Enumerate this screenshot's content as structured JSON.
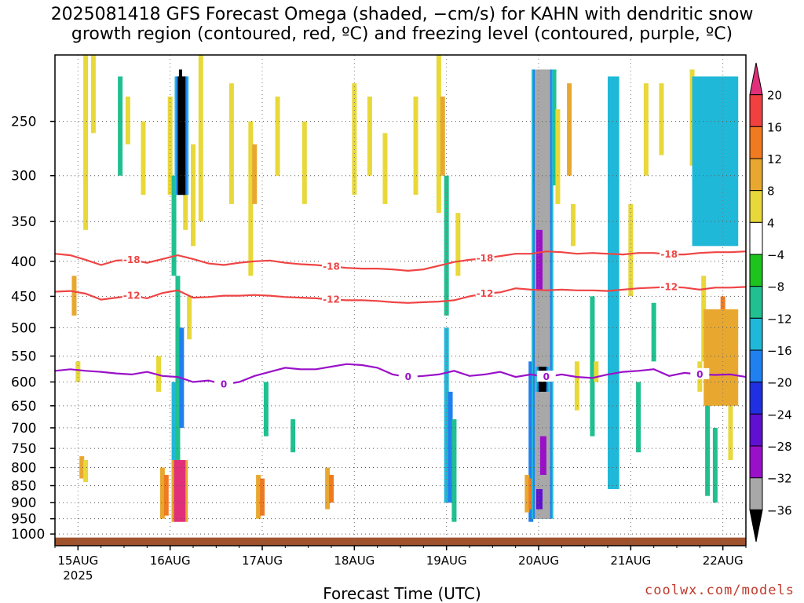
{
  "title_line1": "2025081418 GFS Forecast Omega (shaded, −cm/s) for KAHN with dendritic snow",
  "title_line2": "growth region (contoured, red, ºC) and freezing level (contoured, purple, ºC)",
  "credit": "coolwx.com/models",
  "chart_data": {
    "type": "heatmap",
    "title": "2025081418 GFS Forecast Omega (shaded, −cm/s) for KAHN with dendritic snow growth region (contoured, red, ºC) and freezing level (contoured, purple, ºC)",
    "xlabel": "Forecast Time (UTC)",
    "ylabel": "",
    "y_scale": "log-pressure (inverted)",
    "ylim": [
      1040,
      200
    ],
    "y_ticks": [
      250,
      300,
      350,
      400,
      450,
      500,
      550,
      600,
      650,
      700,
      750,
      800,
      850,
      900,
      950,
      1000
    ],
    "x_ticks": [
      {
        "label": "15AUG",
        "sublabel": "2025",
        "hour": 0
      },
      {
        "label": "16AUG",
        "hour": 24
      },
      {
        "label": "17AUG",
        "hour": 48
      },
      {
        "label": "18AUG",
        "hour": 72
      },
      {
        "label": "19AUG",
        "hour": 96
      },
      {
        "label": "20AUG",
        "hour": 120
      },
      {
        "label": "21AUG",
        "hour": 144
      },
      {
        "label": "22AUG",
        "hour": 168
      }
    ],
    "xlim_hours": [
      -6,
      174
    ],
    "grid": true,
    "colorbar": {
      "labels": [
        "20",
        "16",
        "12",
        "8",
        "4",
        "−4",
        "−8",
        "−12",
        "−16",
        "−20",
        "−24",
        "−28",
        "−32",
        "−36"
      ],
      "colors": [
        "#e0307a",
        "#f04040",
        "#f07a20",
        "#e8a830",
        "#e8d83a",
        "#ffffff",
        "#1dc41d",
        "#20c090",
        "#20b8d8",
        "#2080f0",
        "#2030e0",
        "#6010d0",
        "#9a10c8",
        "#a8a8a8",
        "#000000"
      ]
    },
    "ground_color": "#a0522d",
    "contours": [
      {
        "label": "-18",
        "color": "#ef4444",
        "x": [
          -6,
          -2,
          2,
          6,
          10,
          14,
          18,
          22,
          26,
          30,
          34,
          38,
          42,
          46,
          50,
          54,
          58,
          62,
          66,
          70,
          74,
          78,
          82,
          86,
          90,
          94,
          98,
          102,
          106,
          110,
          114,
          118,
          122,
          126,
          130,
          134,
          138,
          142,
          146,
          150,
          154,
          158,
          162,
          166,
          170,
          174
        ],
        "y": [
          390,
          392,
          398,
          405,
          399,
          398,
          402,
          397,
          392,
          397,
          403,
          405,
          402,
          400,
          399,
          402,
          404,
          405,
          407,
          409,
          410,
          410,
          411,
          413,
          411,
          406,
          401,
          398,
          396,
          393,
          390,
          390,
          387,
          388,
          390,
          389,
          390,
          391,
          389,
          389,
          391,
          391,
          389,
          388,
          388,
          387
        ]
      },
      {
        "label": "-12",
        "color": "#ef4444",
        "x": [
          -6,
          -2,
          2,
          6,
          10,
          14,
          18,
          22,
          26,
          30,
          34,
          38,
          42,
          46,
          50,
          54,
          58,
          62,
          66,
          70,
          74,
          78,
          82,
          86,
          90,
          94,
          98,
          102,
          106,
          110,
          114,
          118,
          122,
          126,
          130,
          134,
          138,
          142,
          146,
          150,
          154,
          158,
          162,
          166,
          170,
          174
        ],
        "y": [
          443,
          442,
          446,
          455,
          452,
          449,
          453,
          445,
          441,
          452,
          451,
          449,
          449,
          448,
          449,
          451,
          452,
          453,
          455,
          456,
          456,
          457,
          459,
          460,
          459,
          458,
          456,
          450,
          446,
          444,
          438,
          440,
          441,
          440,
          441,
          441,
          442,
          440,
          438,
          437,
          436,
          437,
          440,
          437,
          437,
          436
        ]
      },
      {
        "label": "0",
        "color": "#9a10c8",
        "x": [
          -6,
          -2,
          2,
          6,
          10,
          14,
          18,
          22,
          26,
          30,
          34,
          38,
          42,
          46,
          50,
          54,
          58,
          62,
          66,
          70,
          74,
          78,
          82,
          86,
          90,
          94,
          98,
          102,
          106,
          110,
          114,
          118,
          122,
          126,
          130,
          134,
          138,
          142,
          146,
          150,
          154,
          158,
          162,
          166,
          170,
          174
        ],
        "y": [
          578,
          575,
          578,
          580,
          583,
          585,
          580,
          588,
          590,
          600,
          597,
          605,
          600,
          588,
          580,
          572,
          575,
          575,
          570,
          565,
          567,
          572,
          585,
          590,
          588,
          585,
          578,
          588,
          585,
          580,
          590,
          585,
          590,
          585,
          590,
          592,
          585,
          580,
          578,
          575,
          588,
          582,
          585,
          586,
          585,
          590
        ]
      }
    ],
    "omega_features": [
      {
        "name": "16AUG upper descent",
        "x_range": [
          26,
          28
        ],
        "p_range": [
          215,
          320
        ],
        "value": -36
      },
      {
        "name": "16AUG low-level ascent",
        "x_range": [
          25,
          28
        ],
        "p_range": [
          780,
          960
        ],
        "value": 20
      },
      {
        "name": "20AUG deep descent",
        "x_range": [
          119,
          123
        ],
        "p_range": [
          210,
          950
        ],
        "value": -32
      },
      {
        "name": "20AUG core",
        "x_range": [
          120,
          122
        ],
        "p_range": [
          570,
          620
        ],
        "value": -36
      },
      {
        "name": "21AUG descent column",
        "x_range": [
          138,
          141
        ],
        "p_range": [
          215,
          860
        ],
        "value": -12
      },
      {
        "name": "22AUG upper descent",
        "x_range": [
          160,
          172
        ],
        "p_range": [
          215,
          380
        ],
        "value": -12
      },
      {
        "name": "22AUG low-level ascent",
        "x_range": [
          163,
          172
        ],
        "p_range": [
          470,
          650
        ],
        "value": 8
      }
    ]
  }
}
